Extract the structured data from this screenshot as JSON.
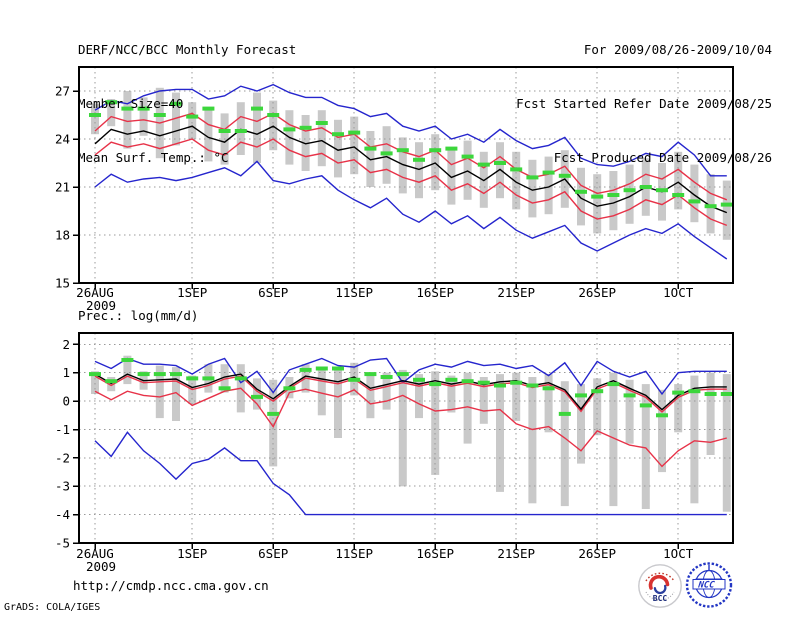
{
  "header": {
    "left": [
      "DERF/NCC/BCC Monthly Forecast",
      "Member Size=40",
      "Mean Surf. Temp.: °C"
    ],
    "right": [
      "For 2009/08/26-2009/10/04",
      "Fcst Started Refer Date 2009/08/25",
      "Fcst Produced Date 2009/08/26"
    ]
  },
  "footer": {
    "url": "http://cmdp.ncc.cma.gov.cn",
    "grads_credit": "GrADS: COLA/IGES",
    "logos": [
      {
        "label": "BCC"
      },
      {
        "label": "NCC"
      }
    ]
  },
  "colors": {
    "blue": "#2525cd",
    "red": "#e73248",
    "black": "#000000",
    "green": "#3cd63c",
    "bar": "#c9c9c9",
    "grid": "#999999",
    "frame": "#000000",
    "bcc_red": "#d8322f",
    "bcc_blue": "#2a3f9e",
    "ncc_blue": "#2336c4"
  },
  "chart_data": [
    {
      "type": "line",
      "title": "Mean Surf. Temp.: °C",
      "x_start_date": "2009-08-26",
      "x_end_date": "2009-10-04",
      "n_days": 40,
      "x_tick_labels": [
        "26AUG",
        "1SEP",
        "6SEP",
        "11SEP",
        "16SEP",
        "21SEP",
        "26SEP",
        "1OCT"
      ],
      "x_tick_days": [
        0,
        6,
        11,
        16,
        21,
        26,
        31,
        36
      ],
      "year_label": "2009",
      "ylim": [
        15,
        28.5
      ],
      "yticks": [
        15,
        18,
        21,
        24,
        27
      ],
      "grid": true,
      "legend": "none",
      "series": [
        {
          "name": "ensemble-max",
          "color": "blue",
          "values": [
            25.8,
            26.4,
            26.2,
            26.7,
            27.0,
            27.1,
            27.1,
            26.5,
            26.7,
            27.3,
            27.0,
            27.4,
            26.9,
            26.6,
            26.6,
            26.1,
            25.9,
            25.4,
            25.6,
            24.8,
            24.5,
            24.8,
            24.0,
            24.3,
            23.8,
            24.6,
            23.9,
            23.4,
            23.6,
            24.1,
            22.8,
            22.4,
            22.3,
            22.6,
            23.1,
            22.9,
            23.8,
            23.0,
            21.7,
            21.7
          ]
        },
        {
          "name": "mean-plus-sd",
          "color": "red",
          "values": [
            24.5,
            25.4,
            25.1,
            25.2,
            25.0,
            25.3,
            25.6,
            24.9,
            24.6,
            25.4,
            25.1,
            25.6,
            24.9,
            24.5,
            24.7,
            24.1,
            24.3,
            23.5,
            23.7,
            23.2,
            22.9,
            23.3,
            22.4,
            22.8,
            22.2,
            22.9,
            22.1,
            21.6,
            21.8,
            22.3,
            21.1,
            20.6,
            20.8,
            21.2,
            21.8,
            21.5,
            22.1,
            21.3,
            20.6,
            20.2
          ]
        },
        {
          "name": "mean-minus-sd",
          "color": "red",
          "values": [
            23.0,
            23.8,
            23.5,
            23.7,
            23.4,
            23.7,
            24.0,
            23.3,
            23.0,
            23.8,
            23.5,
            24.0,
            23.3,
            22.9,
            23.1,
            22.5,
            22.7,
            21.9,
            22.1,
            21.6,
            21.3,
            21.7,
            20.8,
            21.2,
            20.6,
            21.3,
            20.5,
            20.0,
            20.2,
            20.7,
            19.5,
            19.0,
            19.2,
            19.6,
            20.2,
            19.9,
            20.5,
            19.7,
            19.0,
            18.6
          ]
        },
        {
          "name": "ensemble-min",
          "color": "blue",
          "values": [
            21.0,
            21.8,
            21.3,
            21.5,
            21.6,
            21.4,
            21.6,
            21.9,
            22.2,
            21.7,
            22.6,
            21.4,
            21.2,
            21.5,
            21.7,
            20.8,
            20.2,
            19.7,
            20.3,
            19.3,
            18.8,
            19.5,
            18.7,
            19.2,
            18.4,
            19.1,
            18.3,
            17.8,
            18.2,
            18.6,
            17.5,
            17.0,
            17.5,
            18.0,
            18.4,
            18.1,
            18.7,
            17.9,
            17.2,
            16.5
          ]
        },
        {
          "name": "ensemble-mean",
          "color": "black",
          "values": [
            23.7,
            24.6,
            24.3,
            24.5,
            24.2,
            24.5,
            24.8,
            24.1,
            23.8,
            24.6,
            24.3,
            24.8,
            24.1,
            23.7,
            23.9,
            23.3,
            23.5,
            22.7,
            22.9,
            22.4,
            22.1,
            22.5,
            21.6,
            22.0,
            21.4,
            22.1,
            21.3,
            20.8,
            21.0,
            21.5,
            20.3,
            19.8,
            20.0,
            20.4,
            21.0,
            20.7,
            21.3,
            20.5,
            19.8,
            19.4
          ]
        }
      ],
      "green_dashed_series": {
        "name": "reference-green-dashed",
        "values": [
          25.5,
          26.3,
          25.9,
          25.9,
          25.5,
          26.2,
          25.4,
          25.9,
          24.5,
          24.5,
          25.9,
          25.5,
          24.6,
          24.7,
          25.0,
          24.3,
          24.4,
          23.4,
          23.1,
          23.3,
          22.7,
          23.3,
          23.4,
          22.9,
          22.4,
          22.5,
          22.1,
          21.6,
          21.9,
          21.7,
          20.7,
          20.4,
          20.5,
          20.8,
          21.0,
          20.8,
          20.5,
          20.1,
          19.8,
          19.9
        ]
      },
      "spread_bars": {
        "max": [
          26.2,
          26.5,
          27.0,
          26.6,
          27.2,
          26.9,
          26.3,
          25.9,
          25.6,
          26.3,
          26.9,
          26.4,
          25.8,
          25.5,
          25.8,
          25.2,
          25.4,
          24.5,
          24.8,
          24.1,
          23.8,
          24.3,
          23.4,
          23.9,
          23.2,
          23.8,
          23.2,
          22.7,
          22.9,
          23.3,
          22.2,
          21.8,
          22.0,
          22.4,
          22.8,
          22.5,
          23.2,
          22.4,
          21.8,
          21.4
        ],
        "min": [
          24.3,
          24.8,
          23.4,
          24.2,
          22.8,
          23.6,
          24.0,
          22.6,
          22.4,
          23.0,
          22.5,
          23.3,
          22.4,
          22.0,
          22.3,
          21.6,
          21.8,
          21.0,
          21.2,
          20.6,
          20.3,
          20.8,
          19.9,
          20.2,
          19.7,
          20.3,
          19.6,
          19.1,
          19.3,
          19.7,
          18.6,
          18.1,
          18.3,
          18.7,
          19.2,
          18.9,
          19.6,
          18.8,
          18.1,
          17.7
        ]
      }
    },
    {
      "type": "line",
      "title": "Prec.: log(mm/d)",
      "x_start_date": "2009-08-26",
      "x_end_date": "2009-10-04",
      "n_days": 40,
      "x_tick_labels": [
        "26AUG",
        "1SEP",
        "6SEP",
        "11SEP",
        "16SEP",
        "21SEP",
        "26SEP",
        "1OCT"
      ],
      "x_tick_days": [
        0,
        6,
        11,
        16,
        21,
        26,
        31,
        36
      ],
      "year_label": "2009",
      "ylim": [
        -5,
        2.4
      ],
      "yticks": [
        -5,
        -4,
        -3,
        -2,
        -1,
        0,
        1,
        2
      ],
      "grid": true,
      "legend": "none",
      "series": [
        {
          "name": "ensemble-max",
          "color": "blue",
          "values": [
            1.4,
            1.15,
            1.5,
            1.3,
            1.3,
            1.25,
            0.95,
            1.3,
            1.5,
            0.65,
            1.05,
            0.3,
            1.1,
            1.3,
            1.5,
            1.25,
            1.2,
            1.45,
            1.5,
            0.65,
            1.1,
            1.3,
            1.2,
            1.4,
            1.25,
            1.3,
            1.15,
            1.25,
            0.9,
            1.35,
            0.55,
            1.4,
            1.05,
            0.85,
            1.05,
            0.25,
            1.0,
            1.05,
            1.05,
            1.05
          ]
        },
        {
          "name": "mean-plus-sd",
          "color": "red",
          "values": [
            0.88,
            0.55,
            0.88,
            0.65,
            0.68,
            0.71,
            0.41,
            0.55,
            0.78,
            0.88,
            0.35,
            0.0,
            0.45,
            0.81,
            0.71,
            0.61,
            0.78,
            0.38,
            0.51,
            0.65,
            0.53,
            0.65,
            0.53,
            0.63,
            0.51,
            0.61,
            0.65,
            0.48,
            0.58,
            0.33,
            -0.36,
            0.43,
            0.65,
            0.38,
            0.13,
            -0.38,
            0.13,
            0.38,
            0.42,
            0.42
          ]
        },
        {
          "name": "mean-minus-sd",
          "color": "red",
          "values": [
            0.35,
            0.05,
            0.35,
            0.2,
            0.15,
            0.3,
            -0.15,
            0.1,
            0.35,
            0.45,
            -0.1,
            -0.9,
            0.3,
            0.42,
            0.28,
            0.15,
            0.4,
            -0.1,
            0.0,
            0.2,
            -0.1,
            -0.35,
            -0.3,
            -0.2,
            -0.35,
            -0.3,
            -0.8,
            -1.0,
            -0.9,
            -1.3,
            -1.75,
            -1.05,
            -1.3,
            -1.55,
            -1.65,
            -2.3,
            -1.75,
            -1.4,
            -1.45,
            -1.3
          ]
        },
        {
          "name": "ensemble-min",
          "color": "blue",
          "values": [
            -1.4,
            -1.95,
            -1.1,
            -1.75,
            -2.2,
            -2.75,
            -2.2,
            -2.05,
            -1.65,
            -2.1,
            -2.1,
            -2.9,
            -3.3,
            -4.0,
            -4.0,
            -4.0,
            -4.0,
            -4.0,
            -4.0,
            -4.0,
            -4.0,
            -4.0,
            -4.0,
            -4.0,
            -4.0,
            -4.0,
            -4.0,
            -4.0,
            -4.0,
            -4.0,
            -4.0,
            -4.0,
            -4.0,
            -4.0,
            -4.0,
            -4.0,
            -4.0,
            -4.0,
            -4.0,
            -4.0
          ]
        },
        {
          "name": "ensemble-mean",
          "color": "black",
          "values": [
            0.95,
            0.62,
            0.95,
            0.72,
            0.75,
            0.78,
            0.48,
            0.62,
            0.85,
            0.95,
            0.42,
            0.08,
            0.52,
            0.88,
            0.78,
            0.68,
            0.85,
            0.45,
            0.58,
            0.72,
            0.6,
            0.72,
            0.6,
            0.7,
            0.58,
            0.68,
            0.72,
            0.55,
            0.65,
            0.4,
            -0.28,
            0.5,
            0.72,
            0.45,
            0.2,
            -0.3,
            0.2,
            0.45,
            0.5,
            0.5
          ]
        }
      ],
      "green_dashed_series": {
        "name": "reference-green-dashed",
        "values": [
          0.95,
          0.7,
          1.45,
          0.95,
          0.95,
          0.95,
          0.8,
          0.8,
          0.45,
          0.8,
          0.15,
          -0.45,
          0.45,
          1.1,
          1.15,
          1.15,
          0.75,
          0.95,
          0.85,
          0.95,
          0.75,
          0.6,
          0.75,
          0.7,
          0.65,
          0.55,
          0.65,
          0.55,
          0.45,
          -0.45,
          0.2,
          0.35,
          0.6,
          0.2,
          -0.15,
          -0.5,
          0.3,
          0.35,
          0.25,
          0.25
        ]
      },
      "spread_bars": {
        "max": [
          1.05,
          0.85,
          1.6,
          1.05,
          1.25,
          1.2,
          0.9,
          1.3,
          1.3,
          1.3,
          0.8,
          0.75,
          0.85,
          1.3,
          1.2,
          1.1,
          1.35,
          0.9,
          1.0,
          1.1,
          0.95,
          1.05,
          0.9,
          1.0,
          0.85,
          0.95,
          1.0,
          0.85,
          0.95,
          0.7,
          0.6,
          0.8,
          1.0,
          0.75,
          0.6,
          0.4,
          0.6,
          0.9,
          1.0,
          0.95
        ],
        "min": [
          0.25,
          0.35,
          0.6,
          0.4,
          -0.6,
          -0.7,
          -0.1,
          0.3,
          0.3,
          -0.4,
          -0.3,
          -2.3,
          0.1,
          0.3,
          -0.5,
          -1.3,
          0.2,
          -0.6,
          -0.3,
          -3.0,
          -0.6,
          -2.6,
          -0.4,
          -1.5,
          -0.8,
          -3.2,
          -0.7,
          -3.6,
          -1.1,
          -3.7,
          -2.2,
          -1.2,
          -3.7,
          -1.5,
          -3.8,
          -2.5,
          -1.1,
          -3.6,
          -1.9,
          -3.9
        ]
      }
    }
  ]
}
